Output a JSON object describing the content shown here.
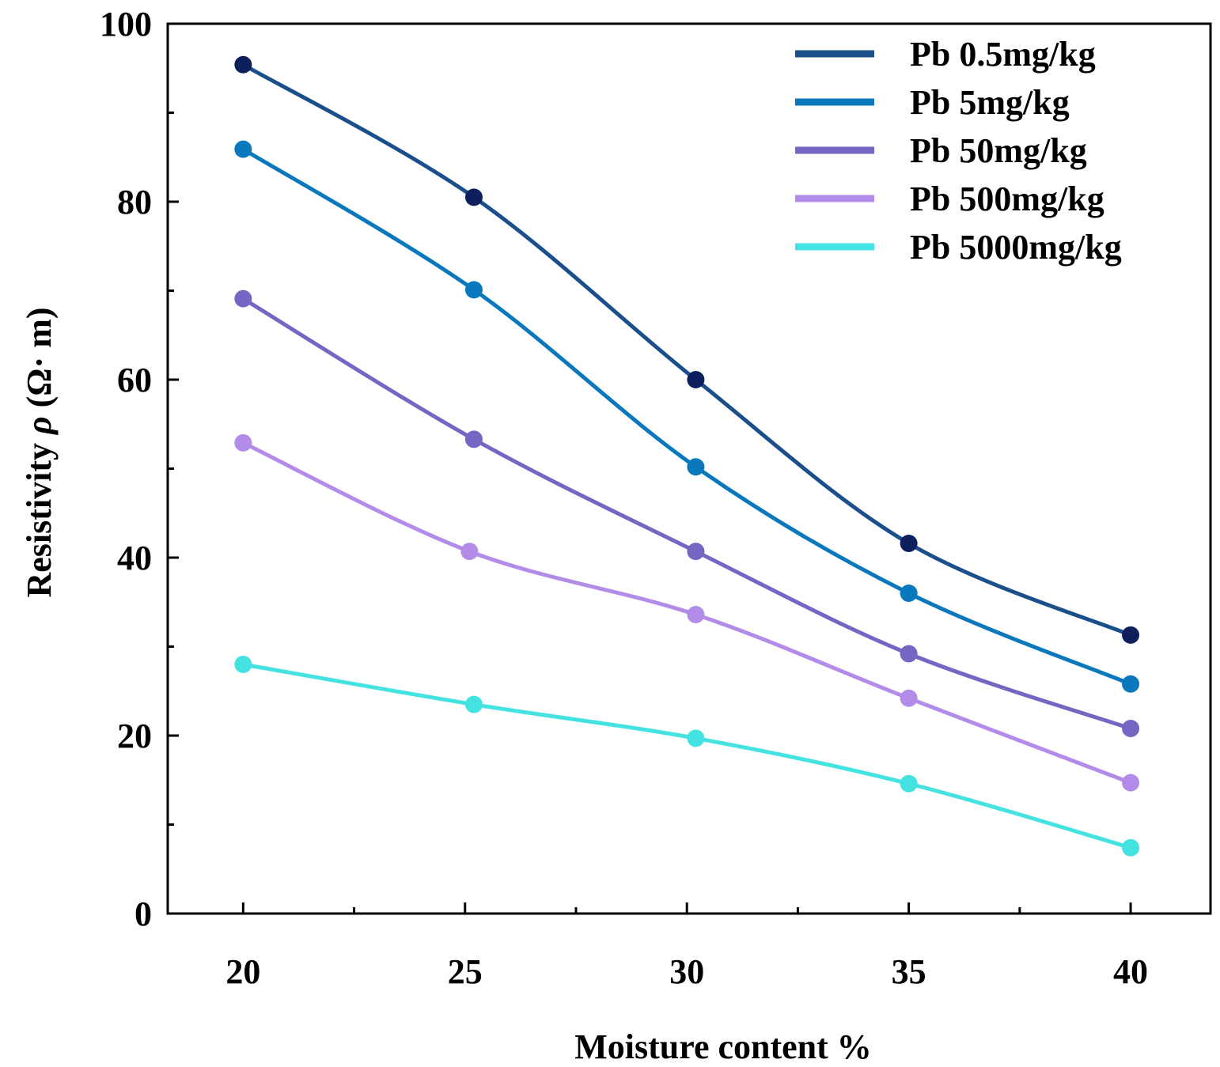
{
  "chart_data": {
    "type": "line",
    "xlabel": "Moisture content %",
    "ylabel_main": "Resistivity ",
    "ylabel_symbol": "ρ",
    "ylabel_unit": "  (Ω· m)",
    "x_ticks": [
      "20",
      "25",
      "30",
      "35",
      "40"
    ],
    "y_ticks": [
      "0",
      "20",
      "40",
      "60",
      "80",
      "100"
    ],
    "xlim": [
      18.3,
      41.8
    ],
    "ylim": [
      0,
      100
    ],
    "x_minor_step": 2.5,
    "y_minor_step": 10,
    "grid": false,
    "legend_position": "top-right",
    "smooth": true,
    "series": [
      {
        "name": "Pb 0.5mg/kg",
        "color": "#0d1f5c",
        "line_color": "#1b4f8c",
        "points": [
          [
            20,
            95.4
          ],
          [
            25.2,
            80.5
          ],
          [
            30.2,
            60.0
          ],
          [
            35,
            41.6
          ],
          [
            40,
            31.3
          ]
        ]
      },
      {
        "name": "Pb 5mg/kg",
        "color": "#0a78bd",
        "line_color": "#0a78bd",
        "points": [
          [
            20,
            85.9
          ],
          [
            25.2,
            70.1
          ],
          [
            30.2,
            50.2
          ],
          [
            35,
            36.0
          ],
          [
            40,
            25.8
          ]
        ]
      },
      {
        "name": "Pb 50mg/kg",
        "color": "#7566c4",
        "line_color": "#7566c4",
        "points": [
          [
            20,
            69.1
          ],
          [
            25.2,
            53.3
          ],
          [
            30.2,
            40.7
          ],
          [
            35,
            29.2
          ],
          [
            40,
            20.8
          ]
        ]
      },
      {
        "name": "Pb 500mg/kg",
        "color": "#b38cea",
        "line_color": "#b38cea",
        "points": [
          [
            20,
            52.9
          ],
          [
            25.1,
            40.7
          ],
          [
            30.2,
            33.6
          ],
          [
            35,
            24.2
          ],
          [
            40,
            14.7
          ]
        ]
      },
      {
        "name": "Pb 5000mg/kg",
        "color": "#45e2e2",
        "line_color": "#45e2e2",
        "points": [
          [
            20,
            28.0
          ],
          [
            25.2,
            23.5
          ],
          [
            30.2,
            19.7
          ],
          [
            35,
            14.6
          ],
          [
            40,
            7.4
          ]
        ]
      }
    ]
  }
}
